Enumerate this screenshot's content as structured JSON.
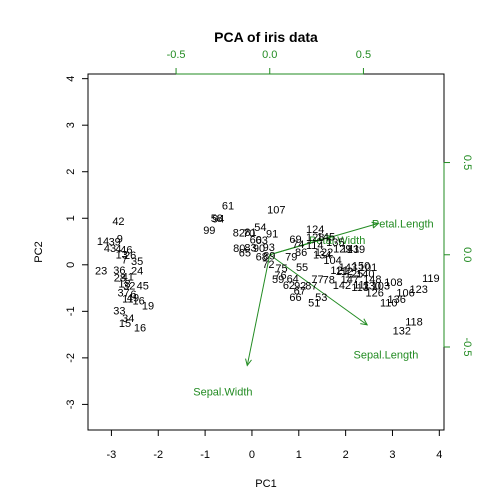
{
  "chart_data": {
    "type": "biplot",
    "title": "PCA of iris data",
    "xlabel": "PC1",
    "ylabel": "PC2",
    "xlim": [
      -3.5,
      4.1
    ],
    "ylim": [
      -3.55,
      4.1
    ],
    "xticks": [
      -3,
      -2,
      -1,
      0,
      1,
      2,
      3,
      4
    ],
    "yticks": [
      -3,
      -2,
      -1,
      0,
      1,
      2,
      3,
      4
    ],
    "loading_xlim": [
      -0.97,
      0.93
    ],
    "loading_ylim": [
      -0.95,
      0.98
    ],
    "top_ticks": [
      -0.5,
      0.0,
      0.5
    ],
    "right_ticks": [
      -0.5,
      0.0,
      0.5
    ],
    "colors": {
      "points": "#000000",
      "loadings": "#228B22",
      "frame": "#000000"
    },
    "observations": [
      {
        "label": "42",
        "x": -2.85,
        "y": 0.94
      },
      {
        "label": "14",
        "x": -3.18,
        "y": 0.51
      },
      {
        "label": "39",
        "x": -2.93,
        "y": 0.5
      },
      {
        "label": "9",
        "x": -2.82,
        "y": 0.56
      },
      {
        "label": "43",
        "x": -3.03,
        "y": 0.36
      },
      {
        "label": "4",
        "x": -2.85,
        "y": 0.35
      },
      {
        "label": "46",
        "x": -2.68,
        "y": 0.33
      },
      {
        "label": "13",
        "x": -2.78,
        "y": 0.22
      },
      {
        "label": "26",
        "x": -2.6,
        "y": 0.21
      },
      {
        "label": "7",
        "x": -2.72,
        "y": 0.11
      },
      {
        "label": "35",
        "x": -2.45,
        "y": 0.08
      },
      {
        "label": "23",
        "x": -3.22,
        "y": -0.12
      },
      {
        "label": "36",
        "x": -2.83,
        "y": -0.11
      },
      {
        "label": "24",
        "x": -2.45,
        "y": -0.12
      },
      {
        "label": "28",
        "x": -2.82,
        "y": -0.27
      },
      {
        "label": "41",
        "x": -2.65,
        "y": -0.25
      },
      {
        "label": "18",
        "x": -2.72,
        "y": -0.4
      },
      {
        "label": "32",
        "x": -2.62,
        "y": -0.44
      },
      {
        "label": "45",
        "x": -2.33,
        "y": -0.45
      },
      {
        "label": "37",
        "x": -2.74,
        "y": -0.6
      },
      {
        "label": "6",
        "x": -2.53,
        "y": -0.63
      },
      {
        "label": "11",
        "x": -2.65,
        "y": -0.72
      },
      {
        "label": "49",
        "x": -2.54,
        "y": -0.7
      },
      {
        "label": "16",
        "x": -2.42,
        "y": -0.77
      },
      {
        "label": "19",
        "x": -2.22,
        "y": -0.88
      },
      {
        "label": "34",
        "x": -2.64,
        "y": -1.14
      },
      {
        "label": "15",
        "x": -2.71,
        "y": -1.25
      },
      {
        "label": "33",
        "x": -2.83,
        "y": -0.98
      },
      {
        "label": "16",
        "x": -2.39,
        "y": -1.35
      },
      {
        "label": "61",
        "x": -0.51,
        "y": 1.27
      },
      {
        "label": "58",
        "x": -0.75,
        "y": 1.01
      },
      {
        "label": "94",
        "x": -0.72,
        "y": 1.0
      },
      {
        "label": "99",
        "x": -0.91,
        "y": 0.75
      },
      {
        "label": "107",
        "x": 0.52,
        "y": 1.19
      },
      {
        "label": "54",
        "x": 0.18,
        "y": 0.81
      },
      {
        "label": "82",
        "x": -0.28,
        "y": 0.69
      },
      {
        "label": "70",
        "x": -0.06,
        "y": 0.68
      },
      {
        "label": "81",
        "x": -0.03,
        "y": 0.7
      },
      {
        "label": "91",
        "x": 0.43,
        "y": 0.67
      },
      {
        "label": "60",
        "x": 0.08,
        "y": 0.54
      },
      {
        "label": "63",
        "x": 0.21,
        "y": 0.53
      },
      {
        "label": "80",
        "x": -0.27,
        "y": 0.36
      },
      {
        "label": "83",
        "x": -0.03,
        "y": 0.37
      },
      {
        "label": "65",
        "x": -0.15,
        "y": 0.26
      },
      {
        "label": "90",
        "x": 0.15,
        "y": 0.36
      },
      {
        "label": "93",
        "x": 0.36,
        "y": 0.38
      },
      {
        "label": "68",
        "x": 0.21,
        "y": 0.18
      },
      {
        "label": "89",
        "x": 0.37,
        "y": 0.2
      },
      {
        "label": "72",
        "x": 0.35,
        "y": 0.02
      },
      {
        "label": "69",
        "x": 0.93,
        "y": 0.55
      },
      {
        "label": "74",
        "x": 0.99,
        "y": 0.45
      },
      {
        "label": "86",
        "x": 1.05,
        "y": 0.28
      },
      {
        "label": "79",
        "x": 0.84,
        "y": 0.18
      },
      {
        "label": "55",
        "x": 1.07,
        "y": -0.05
      },
      {
        "label": "75",
        "x": 0.63,
        "y": -0.07
      },
      {
        "label": "64",
        "x": 0.87,
        "y": -0.29
      },
      {
        "label": "59",
        "x": 0.56,
        "y": -0.31
      },
      {
        "label": "62",
        "x": 0.79,
        "y": -0.43
      },
      {
        "label": "92",
        "x": 1.03,
        "y": -0.45
      },
      {
        "label": "76",
        "x": 0.61,
        "y": -0.22
      },
      {
        "label": "66",
        "x": 0.93,
        "y": -0.69
      },
      {
        "label": "67",
        "x": 1.02,
        "y": -0.55
      },
      {
        "label": "53",
        "x": 1.48,
        "y": -0.69
      },
      {
        "label": "77",
        "x": 1.4,
        "y": -0.31
      },
      {
        "label": "78",
        "x": 1.64,
        "y": -0.32
      },
      {
        "label": "87",
        "x": 1.27,
        "y": -0.44
      },
      {
        "label": "51",
        "x": 1.33,
        "y": -0.81
      },
      {
        "label": "124",
        "x": 1.35,
        "y": 0.77
      },
      {
        "label": "128",
        "x": 1.35,
        "y": 0.6
      },
      {
        "label": "145",
        "x": 1.58,
        "y": 0.61
      },
      {
        "label": "135",
        "x": 1.78,
        "y": 0.49
      },
      {
        "label": "114",
        "x": 1.34,
        "y": 0.43
      },
      {
        "label": "141",
        "x": 2.1,
        "y": 0.35
      },
      {
        "label": "129",
        "x": 1.93,
        "y": 0.35
      },
      {
        "label": "139",
        "x": 2.22,
        "y": 0.34
      },
      {
        "label": "134",
        "x": 1.5,
        "y": 0.22
      },
      {
        "label": "122",
        "x": 1.54,
        "y": 0.27
      },
      {
        "label": "104",
        "x": 1.72,
        "y": 0.1
      },
      {
        "label": "143",
        "x": 2.05,
        "y": -0.05
      },
      {
        "label": "150",
        "x": 2.33,
        "y": -0.02
      },
      {
        "label": "101",
        "x": 2.48,
        "y": -0.05
      },
      {
        "label": "125",
        "x": 2.18,
        "y": -0.19
      },
      {
        "label": "140",
        "x": 2.42,
        "y": -0.19
      },
      {
        "label": "121",
        "x": 1.87,
        "y": -0.11
      },
      {
        "label": "112",
        "x": 1.97,
        "y": -0.13
      },
      {
        "label": "147",
        "x": 2.09,
        "y": -0.3
      },
      {
        "label": "148",
        "x": 2.57,
        "y": -0.31
      },
      {
        "label": "111",
        "x": 2.34,
        "y": -0.42
      },
      {
        "label": "142",
        "x": 1.92,
        "y": -0.43
      },
      {
        "label": "113",
        "x": 2.31,
        "y": -0.48
      },
      {
        "label": "130",
        "x": 2.56,
        "y": -0.45
      },
      {
        "label": "103",
        "x": 2.75,
        "y": -0.44
      },
      {
        "label": "108",
        "x": 3.02,
        "y": -0.37
      },
      {
        "label": "126",
        "x": 2.62,
        "y": -0.59
      },
      {
        "label": "136",
        "x": 3.09,
        "y": -0.73
      },
      {
        "label": "110",
        "x": 2.92,
        "y": -0.81
      },
      {
        "label": "106",
        "x": 3.28,
        "y": -0.6
      },
      {
        "label": "123",
        "x": 3.56,
        "y": -0.52
      },
      {
        "label": "119",
        "x": 3.82,
        "y": -0.28
      },
      {
        "label": "118",
        "x": 3.46,
        "y": -1.22
      },
      {
        "label": "132",
        "x": 3.2,
        "y": -1.41
      }
    ],
    "loadings": [
      {
        "name": "Sepal.Length",
        "x": 0.52,
        "y": -0.38,
        "label_x": 0.62,
        "label_y": -0.54
      },
      {
        "name": "Sepal.Width",
        "x": -0.12,
        "y": -0.6,
        "label_x": -0.25,
        "label_y": -0.74
      },
      {
        "name": "Petal.Length",
        "x": 0.58,
        "y": 0.17,
        "label_x": 0.71,
        "label_y": 0.17
      },
      {
        "name": "Petal.Width",
        "x": 0.33,
        "y": 0.1,
        "label_x": 0.36,
        "label_y": 0.08
      }
    ]
  }
}
